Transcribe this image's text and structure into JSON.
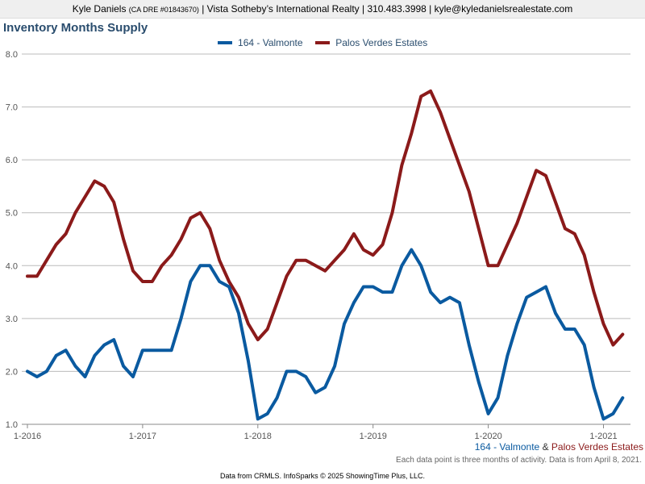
{
  "header": {
    "name": "Kyle Daniels",
    "dre": "(CA DRE #01843670)",
    "rest": "| Vista Sotheby’s International Realty | 310.483.3998 | kyle@kyledanielsrealestate.com"
  },
  "colors": {
    "series1": "#0a5aa0",
    "series2": "#8b1a1a"
  },
  "chart_data": {
    "type": "line",
    "title": "Inventory Months Supply",
    "xlabel": "",
    "ylabel": "",
    "ylim": [
      1.0,
      8.0
    ],
    "yticks": [
      "1.0",
      "2.0",
      "3.0",
      "4.0",
      "5.0",
      "6.0",
      "7.0",
      "8.0"
    ],
    "xticks": [
      "1-2016",
      "1-2017",
      "1-2018",
      "1-2019",
      "1-2020",
      "1-2021"
    ],
    "grid": true,
    "legend": "top-center",
    "series": [
      {
        "name": "164 - Valmonte",
        "values": [
          2.0,
          1.9,
          2.0,
          2.3,
          2.4,
          2.1,
          1.9,
          2.3,
          2.5,
          2.6,
          2.1,
          1.9,
          2.4,
          2.4,
          2.4,
          2.4,
          3.0,
          3.7,
          4.0,
          4.0,
          3.7,
          3.6,
          3.1,
          2.2,
          1.1,
          1.2,
          1.5,
          2.0,
          2.0,
          1.9,
          1.6,
          1.7,
          2.1,
          2.9,
          3.3,
          3.6,
          3.6,
          3.5,
          3.5,
          4.0,
          4.3,
          4.0,
          3.5,
          3.3,
          3.4,
          3.3,
          2.5,
          1.8,
          1.2,
          1.5,
          2.3,
          2.9,
          3.4,
          3.5,
          3.6,
          3.1,
          2.8,
          2.8,
          2.5,
          1.7,
          1.1,
          1.2,
          1.5
        ]
      },
      {
        "name": "Palos Verdes Estates",
        "values": [
          3.8,
          3.8,
          4.1,
          4.4,
          4.6,
          5.0,
          5.3,
          5.6,
          5.5,
          5.2,
          4.5,
          3.9,
          3.7,
          3.7,
          4.0,
          4.2,
          4.5,
          4.9,
          5.0,
          4.7,
          4.1,
          3.7,
          3.4,
          2.9,
          2.6,
          2.8,
          3.3,
          3.8,
          4.1,
          4.1,
          4.0,
          3.9,
          4.1,
          4.3,
          4.6,
          4.3,
          4.2,
          4.4,
          5.0,
          5.9,
          6.5,
          7.2,
          7.3,
          6.9,
          6.4,
          5.9,
          5.4,
          4.7,
          4.0,
          4.0,
          4.4,
          4.8,
          5.3,
          5.8,
          5.7,
          5.2,
          4.7,
          4.6,
          4.2,
          3.5,
          2.9,
          2.5,
          2.7
        ]
      }
    ]
  },
  "bottom_legend": {
    "s1": "164 - Valmonte",
    "amp": "&",
    "s2": "Palos Verdes Estates"
  },
  "note": "Each data point is three months of activity. Data is from April 8, 2021.",
  "footer": "Data from CRMLS. InfoSparks © 2025 ShowingTime Plus, LLC."
}
